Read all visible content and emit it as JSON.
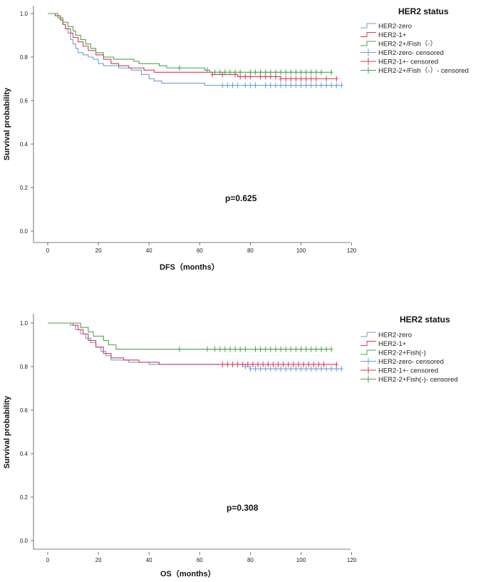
{
  "chart_data": [
    {
      "type": "line",
      "subtype": "kaplan-meier",
      "xlabel": "DFS（months）",
      "ylabel": "Survival probability",
      "xlim": [
        -6,
        120
      ],
      "ylim": [
        -0.04,
        1.05
      ],
      "xticks": [
        0,
        20,
        40,
        60,
        80,
        100,
        120
      ],
      "yticks": [
        0.0,
        0.2,
        0.4,
        0.6,
        0.8,
        1.0
      ],
      "xtick_labels": [
        "0",
        "20",
        "40",
        "60",
        "80",
        "100",
        "120"
      ],
      "ytick_labels": [
        "0.0",
        "0.2",
        "0.4",
        "0.6",
        "0.8",
        "1.0"
      ],
      "annotation": "p=0.625",
      "legend": {
        "title": "HER2 status",
        "position": "top-right",
        "entries": [
          "HER2-zero",
          "HER2-1+",
          "HER2-2+/Fish（-）",
          "HER2-zero- censored",
          "HER2-1+- censored",
          "HER2-2+/Fish（-）- censored"
        ]
      },
      "series": [
        {
          "name": "HER2-zero",
          "color": "#6f9fd8",
          "steps": [
            [
              0,
              1.0
            ],
            [
              3,
              0.99
            ],
            [
              5,
              0.97
            ],
            [
              6,
              0.95
            ],
            [
              7,
              0.93
            ],
            [
              8,
              0.91
            ],
            [
              9,
              0.88
            ],
            [
              10,
              0.86
            ],
            [
              11,
              0.84
            ],
            [
              12,
              0.82
            ],
            [
              14,
              0.81
            ],
            [
              16,
              0.8
            ],
            [
              18,
              0.79
            ],
            [
              20,
              0.77
            ],
            [
              22,
              0.76
            ],
            [
              25,
              0.76
            ],
            [
              28,
              0.75
            ],
            [
              33,
              0.74
            ],
            [
              37,
              0.72
            ],
            [
              40,
              0.7
            ],
            [
              42,
              0.69
            ],
            [
              45,
              0.68
            ],
            [
              50,
              0.68
            ],
            [
              55,
              0.68
            ],
            [
              60,
              0.68
            ],
            [
              62,
              0.67
            ],
            [
              70,
              0.67
            ]
          ],
          "end": 116,
          "censored": [
            69,
            71,
            73,
            75,
            78,
            80,
            82,
            86,
            88,
            90,
            92,
            94,
            96,
            98,
            100,
            102,
            104,
            106,
            108,
            110,
            112,
            114,
            116
          ]
        },
        {
          "name": "HER2-1+",
          "color": "#d9385a",
          "steps": [
            [
              0,
              1.0
            ],
            [
              3,
              0.99
            ],
            [
              5,
              0.97
            ],
            [
              6,
              0.95
            ],
            [
              7,
              0.93
            ],
            [
              9,
              0.91
            ],
            [
              10,
              0.89
            ],
            [
              12,
              0.87
            ],
            [
              14,
              0.85
            ],
            [
              16,
              0.83
            ],
            [
              19,
              0.81
            ],
            [
              22,
              0.79
            ],
            [
              25,
              0.77
            ],
            [
              28,
              0.76
            ],
            [
              32,
              0.75
            ],
            [
              38,
              0.74
            ],
            [
              42,
              0.73
            ],
            [
              55,
              0.73
            ],
            [
              65,
              0.72
            ],
            [
              75,
              0.71
            ],
            [
              92,
              0.7
            ]
          ],
          "end": 114,
          "censored": [
            65,
            69,
            74,
            76,
            78,
            80,
            84,
            86,
            88,
            90,
            92,
            94,
            96,
            98,
            100,
            102,
            104,
            106,
            110,
            114
          ]
        },
        {
          "name": "HER2-2+/Fish（-）",
          "color": "#4fa34c",
          "steps": [
            [
              0,
              1.0
            ],
            [
              4,
              0.98
            ],
            [
              6,
              0.96
            ],
            [
              8,
              0.94
            ],
            [
              10,
              0.92
            ],
            [
              11,
              0.9
            ],
            [
              13,
              0.88
            ],
            [
              15,
              0.86
            ],
            [
              17,
              0.84
            ],
            [
              19,
              0.82
            ],
            [
              22,
              0.8
            ],
            [
              26,
              0.79
            ],
            [
              34,
              0.78
            ],
            [
              36,
              0.77
            ],
            [
              44,
              0.76
            ],
            [
              47,
              0.75
            ],
            [
              60,
              0.75
            ],
            [
              62,
              0.74
            ],
            [
              64,
              0.73
            ]
          ],
          "end": 112,
          "censored": [
            52,
            63,
            66,
            68,
            70,
            72,
            74,
            76,
            80,
            82,
            84,
            86,
            88,
            90,
            92,
            94,
            96,
            98,
            100,
            102,
            104,
            106,
            108,
            112
          ]
        }
      ]
    },
    {
      "type": "line",
      "subtype": "kaplan-meier",
      "xlabel": "OS（months）",
      "ylabel": "Survival probability",
      "xlim": [
        -6,
        120
      ],
      "ylim": [
        -0.04,
        1.05
      ],
      "xticks": [
        0,
        20,
        40,
        60,
        80,
        100,
        120
      ],
      "yticks": [
        0.0,
        0.2,
        0.4,
        0.6,
        0.8,
        1.0
      ],
      "xtick_labels": [
        "0",
        "20",
        "40",
        "60",
        "80",
        "100",
        "120"
      ],
      "ytick_labels": [
        "0.0",
        "0.2",
        "0.4",
        "0.6",
        "0.8",
        "1.0"
      ],
      "annotation": "p=0.308",
      "legend": {
        "title": "HER2 status",
        "position": "top-right",
        "entries": [
          "HER2-zero",
          "HER2-1+",
          "HER2-2+Fish(-)",
          "HER2-zero- censored",
          "HER2-1+- censored",
          "HER2-2+Fish(-)- censored"
        ]
      },
      "series": [
        {
          "name": "HER2-zero",
          "color": "#6f9fd8",
          "steps": [
            [
              0,
              1.0
            ],
            [
              9,
              0.99
            ],
            [
              11,
              0.97
            ],
            [
              13,
              0.95
            ],
            [
              15,
              0.93
            ],
            [
              17,
              0.91
            ],
            [
              19,
              0.89
            ],
            [
              21,
              0.87
            ],
            [
              23,
              0.85
            ],
            [
              25,
              0.83
            ],
            [
              32,
              0.82
            ],
            [
              40,
              0.81
            ],
            [
              60,
              0.81
            ],
            [
              78,
              0.8
            ],
            [
              80,
              0.79
            ]
          ],
          "end": 116,
          "censored": [
            78,
            80,
            82,
            84,
            86,
            88,
            90,
            92,
            94,
            96,
            98,
            100,
            102,
            104,
            106,
            108,
            110,
            112,
            114,
            116
          ]
        },
        {
          "name": "HER2-1+",
          "color": "#d9385a",
          "steps": [
            [
              0,
              1.0
            ],
            [
              10,
              0.99
            ],
            [
              12,
              0.97
            ],
            [
              14,
              0.95
            ],
            [
              16,
              0.92
            ],
            [
              19,
              0.89
            ],
            [
              22,
              0.86
            ],
            [
              25,
              0.84
            ],
            [
              30,
              0.83
            ],
            [
              36,
              0.82
            ],
            [
              44,
              0.81
            ],
            [
              60,
              0.81
            ],
            [
              65,
              0.81
            ]
          ],
          "end": 114,
          "censored": [
            69,
            71,
            73,
            75,
            77,
            79,
            81,
            83,
            85,
            87,
            89,
            91,
            93,
            95,
            97,
            99,
            101,
            103,
            105,
            107,
            109,
            114
          ]
        },
        {
          "name": "HER2-2+Fish(-)",
          "color": "#4fa34c",
          "steps": [
            [
              0,
              1.0
            ],
            [
              13,
              0.98
            ],
            [
              16,
              0.96
            ],
            [
              18,
              0.94
            ],
            [
              22,
              0.92
            ],
            [
              24,
              0.9
            ],
            [
              27,
              0.88
            ],
            [
              40,
              0.88
            ]
          ],
          "end": 112,
          "censored": [
            52,
            63,
            66,
            68,
            70,
            72,
            74,
            76,
            78,
            82,
            84,
            86,
            88,
            90,
            92,
            94,
            96,
            98,
            100,
            102,
            104,
            106,
            108,
            110,
            112
          ]
        }
      ]
    }
  ]
}
